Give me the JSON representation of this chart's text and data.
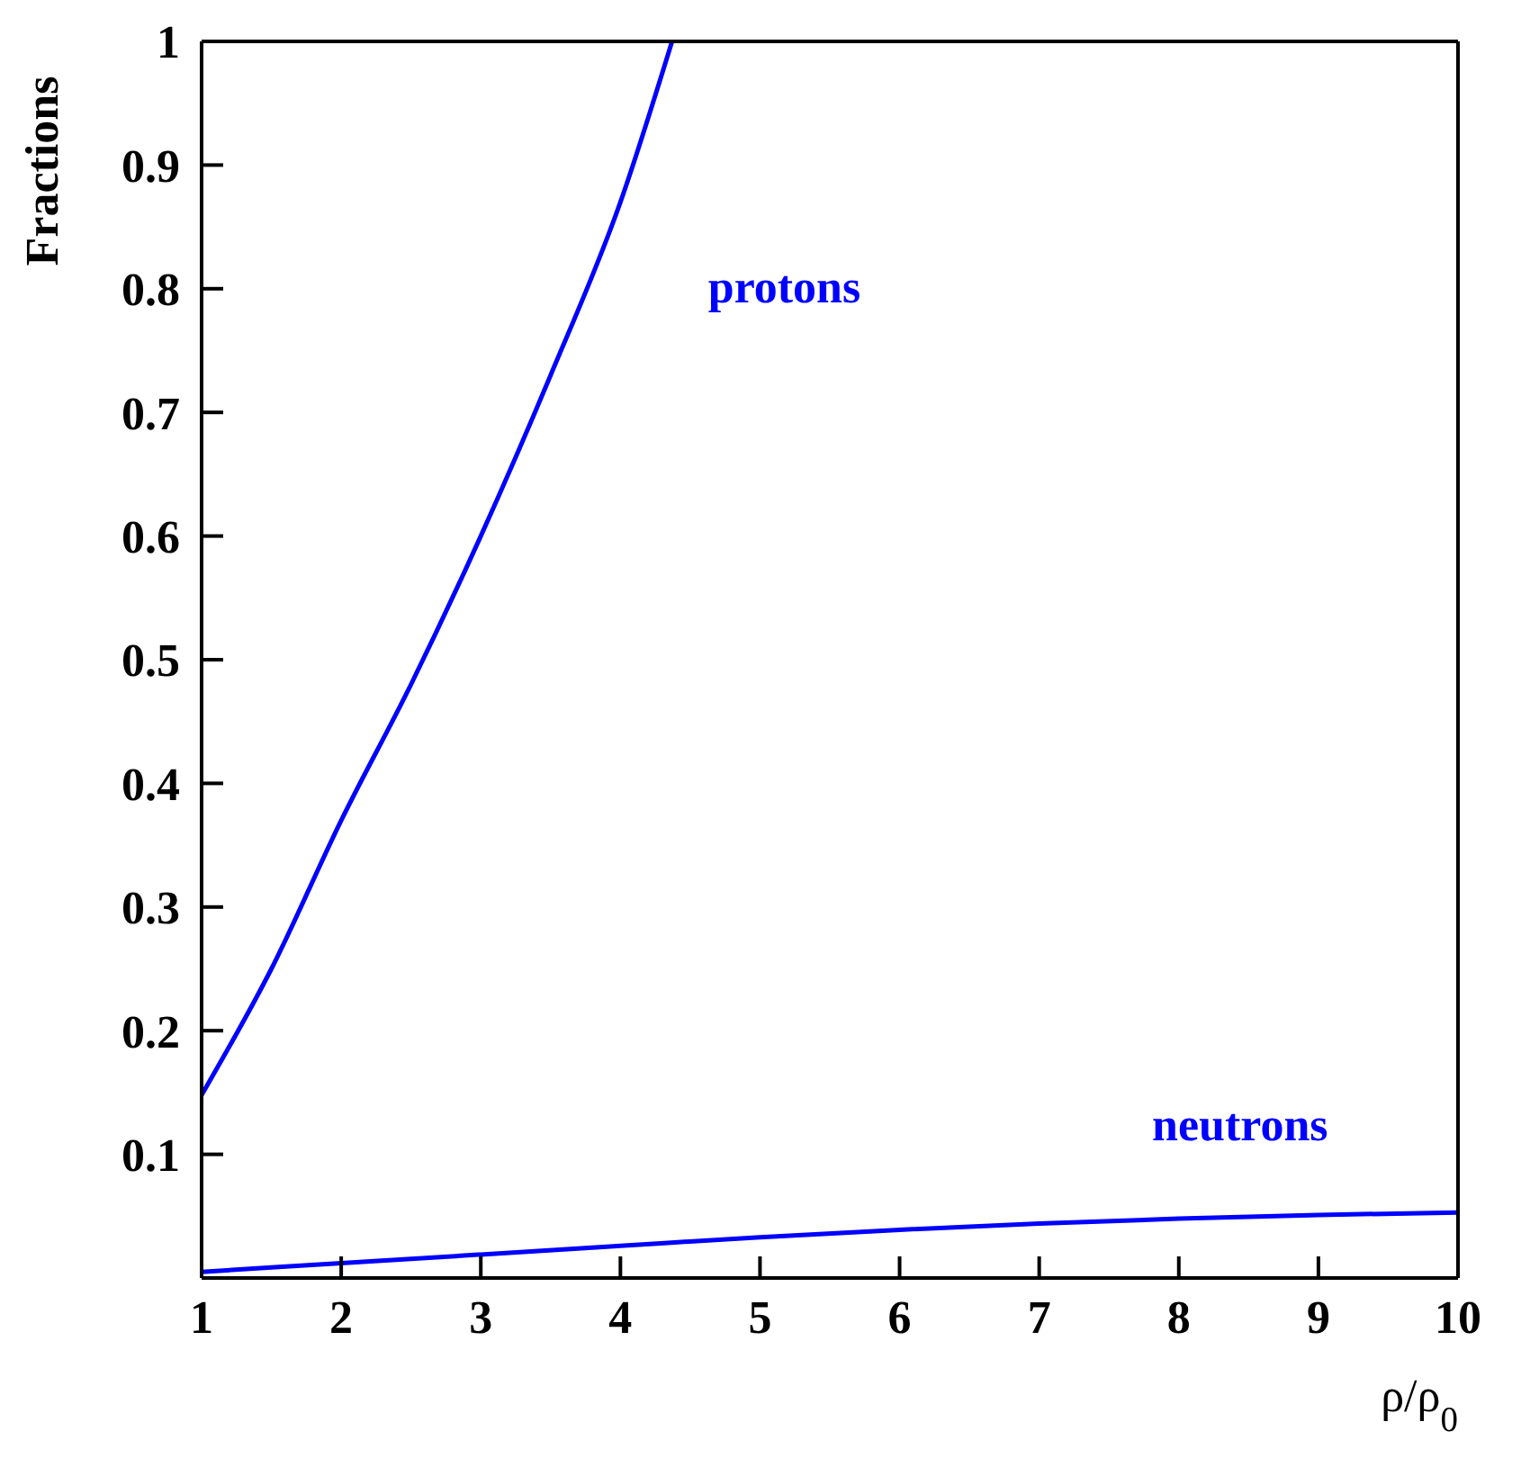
{
  "chart_data": {
    "type": "line",
    "xlabel": "ρ/ρ$_{0}$",
    "ylabel": "Fractions",
    "xlim": [
      1,
      10
    ],
    "xticks": [
      1,
      2,
      3,
      4,
      5,
      6,
      7,
      8,
      9,
      10
    ],
    "ylim": [
      0,
      1
    ],
    "yticks": [
      {
        "value": 0,
        "label": null
      },
      0.1,
      0.2,
      0.3,
      0.4,
      0.5,
      0.6,
      0.7,
      0.8,
      0.9,
      1
    ],
    "marker": "none",
    "line_style": "solid",
    "series": [
      {
        "name": "protons",
        "color": "#0000ff",
        "x": [
          1,
          1.5,
          2,
          2.5,
          3,
          3.5,
          4,
          4.37
        ],
        "values": [
          0.148,
          0.25,
          0.37,
          0.48,
          0.6,
          0.73,
          0.87,
          1
        ]
      },
      {
        "name": "neutrons",
        "color": "#0000ff",
        "x": [
          1,
          2,
          3,
          4,
          5,
          6,
          7,
          8,
          9,
          10
        ],
        "values": [
          0.005,
          0.012,
          0.019,
          0.026,
          0.033,
          0.039,
          0.044,
          0.048,
          0.051,
          0.053
        ]
      }
    ]
  }
}
